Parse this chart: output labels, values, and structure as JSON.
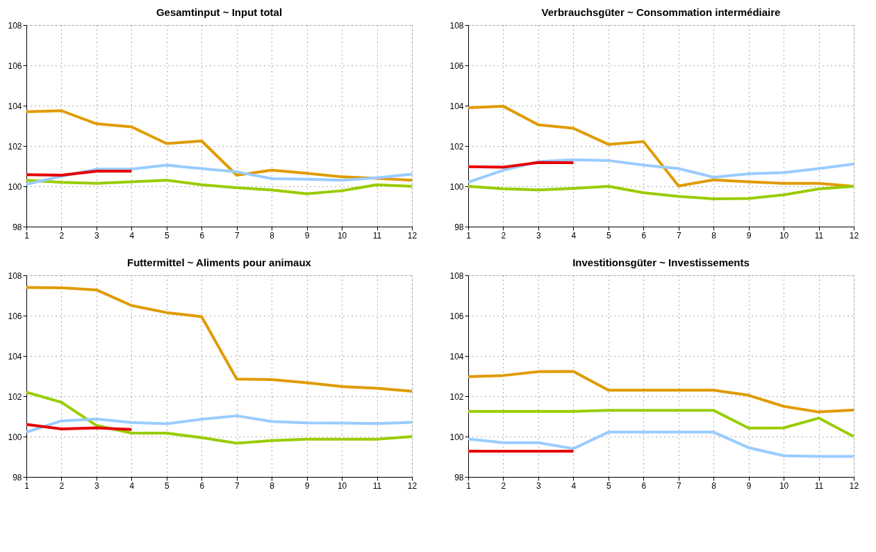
{
  "chart_data": [
    {
      "type": "line",
      "title": "Gesamtinput ~ Input total",
      "x": [
        1,
        2,
        3,
        4,
        5,
        6,
        7,
        8,
        9,
        10,
        11,
        12
      ],
      "xlim": [
        1,
        12
      ],
      "xticks": [
        1,
        2,
        3,
        4,
        5,
        6,
        7,
        8,
        9,
        10,
        11,
        12
      ],
      "ylim": [
        98,
        108
      ],
      "yticks": [
        98,
        100,
        102,
        104,
        106,
        108
      ],
      "grid": true,
      "legend": false,
      "series": [
        {
          "color": "#e09b00",
          "values": [
            103.7,
            103.75,
            103.1,
            102.95,
            102.12,
            102.25,
            100.55,
            100.8,
            100.65,
            100.47,
            100.4,
            100.3
          ]
        },
        {
          "color": "#99cc00",
          "values": [
            100.3,
            100.2,
            100.15,
            100.22,
            100.3,
            100.08,
            99.93,
            99.82,
            99.63,
            99.78,
            100.08,
            100.0
          ]
        },
        {
          "color": "#99ccff",
          "values": [
            100.1,
            100.5,
            100.85,
            100.85,
            101.05,
            100.88,
            100.72,
            100.38,
            100.35,
            100.3,
            100.42,
            100.6
          ]
        },
        {
          "color": "#e60000",
          "values": [
            100.58,
            100.55,
            100.75,
            100.75,
            null,
            null,
            null,
            null,
            null,
            null,
            null,
            null
          ]
        }
      ]
    },
    {
      "type": "line",
      "title": "Verbrauchsgüter ~ Consommation intermédiaire",
      "x": [
        1,
        2,
        3,
        4,
        5,
        6,
        7,
        8,
        9,
        10,
        11,
        12
      ],
      "xlim": [
        1,
        12
      ],
      "xticks": [
        1,
        2,
        3,
        4,
        5,
        6,
        7,
        8,
        9,
        10,
        11,
        12
      ],
      "ylim": [
        98,
        108
      ],
      "yticks": [
        98,
        100,
        102,
        104,
        106,
        108
      ],
      "grid": true,
      "legend": false,
      "series": [
        {
          "color": "#e09b00",
          "values": [
            103.9,
            103.97,
            103.05,
            102.88,
            102.08,
            102.22,
            100.02,
            100.32,
            100.22,
            100.15,
            100.15,
            100.0
          ]
        },
        {
          "color": "#99cc00",
          "values": [
            100.0,
            99.88,
            99.82,
            99.9,
            100.0,
            99.68,
            99.5,
            99.38,
            99.4,
            99.58,
            99.87,
            100.0
          ]
        },
        {
          "color": "#99ccff",
          "values": [
            100.2,
            100.8,
            101.22,
            101.32,
            101.28,
            101.05,
            100.88,
            100.45,
            100.62,
            100.68,
            100.88,
            101.1
          ]
        },
        {
          "color": "#e60000",
          "values": [
            100.97,
            100.95,
            101.18,
            101.17,
            null,
            null,
            null,
            null,
            null,
            null,
            null,
            null
          ]
        }
      ]
    },
    {
      "type": "line",
      "title": "Futtermittel ~ Aliments pour animaux",
      "x": [
        1,
        2,
        3,
        4,
        5,
        6,
        7,
        8,
        9,
        10,
        11,
        12
      ],
      "xlim": [
        1,
        12
      ],
      "xticks": [
        1,
        2,
        3,
        4,
        5,
        6,
        7,
        8,
        9,
        10,
        11,
        12
      ],
      "ylim": [
        98,
        108
      ],
      "yticks": [
        98,
        100,
        102,
        104,
        106,
        108
      ],
      "grid": true,
      "legend": false,
      "series": [
        {
          "color": "#e09b00",
          "values": [
            107.4,
            107.38,
            107.28,
            106.5,
            106.15,
            105.95,
            102.85,
            102.83,
            102.67,
            102.48,
            102.4,
            102.25
          ]
        },
        {
          "color": "#99cc00",
          "values": [
            102.2,
            101.7,
            100.55,
            100.17,
            100.17,
            99.95,
            99.67,
            99.8,
            99.87,
            99.87,
            99.87,
            100.0
          ]
        },
        {
          "color": "#99ccff",
          "values": [
            100.22,
            100.78,
            100.87,
            100.7,
            100.64,
            100.86,
            101.03,
            100.75,
            100.68,
            100.67,
            100.65,
            100.71
          ]
        },
        {
          "color": "#e60000",
          "values": [
            100.6,
            100.38,
            100.43,
            100.35,
            null,
            null,
            null,
            null,
            null,
            null,
            null,
            null
          ]
        }
      ]
    },
    {
      "type": "line",
      "title": "Investitionsgüter ~ Investissements",
      "x": [
        1,
        2,
        3,
        4,
        5,
        6,
        7,
        8,
        9,
        10,
        11,
        12
      ],
      "xlim": [
        1,
        12
      ],
      "xticks": [
        1,
        2,
        3,
        4,
        5,
        6,
        7,
        8,
        9,
        10,
        11,
        12
      ],
      "ylim": [
        98,
        108
      ],
      "yticks": [
        98,
        100,
        102,
        104,
        106,
        108
      ],
      "grid": true,
      "legend": false,
      "series": [
        {
          "color": "#e09b00",
          "values": [
            102.97,
            103.03,
            103.22,
            103.23,
            102.3,
            102.3,
            102.3,
            102.3,
            102.05,
            101.5,
            101.22,
            101.32
          ]
        },
        {
          "color": "#99cc00",
          "values": [
            101.25,
            101.25,
            101.25,
            101.25,
            101.3,
            101.3,
            101.3,
            101.3,
            100.42,
            100.43,
            100.92,
            100.0
          ]
        },
        {
          "color": "#99ccff",
          "values": [
            99.88,
            99.7,
            99.7,
            99.4,
            100.22,
            100.22,
            100.22,
            100.22,
            99.45,
            99.05,
            99.02,
            99.02
          ]
        },
        {
          "color": "#e60000",
          "values": [
            99.28,
            99.28,
            99.28,
            99.28,
            null,
            null,
            null,
            null,
            null,
            null,
            null,
            null
          ]
        }
      ]
    }
  ]
}
